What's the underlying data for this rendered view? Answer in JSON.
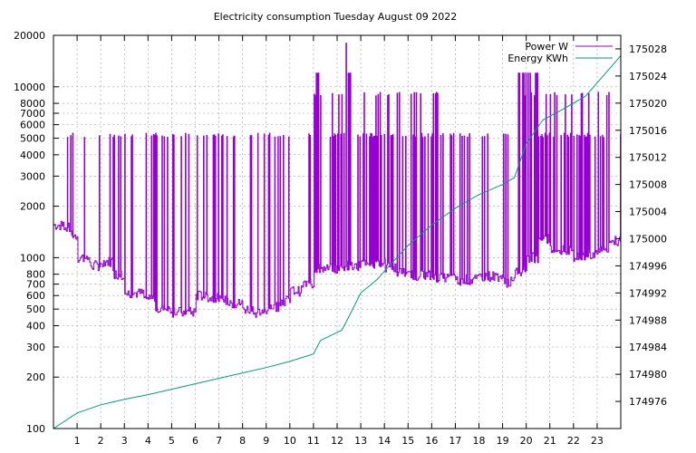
{
  "chart_data": {
    "type": "line",
    "title": "Electricity consumption Tuesday August 09 2022",
    "x_ticks": [
      "1",
      "2",
      "3",
      "4",
      "5",
      "6",
      "7",
      "8",
      "9",
      "10",
      "11",
      "12",
      "13",
      "14",
      "15",
      "16",
      "17",
      "18",
      "19",
      "20",
      "21",
      "22",
      "23"
    ],
    "x_range": [
      0,
      24
    ],
    "y1": {
      "scale": "log",
      "range": [
        100,
        20000
      ],
      "ticks": [
        100,
        200,
        300,
        400,
        500,
        600,
        700,
        800,
        1000,
        2000,
        3000,
        4000,
        5000,
        6000,
        7000,
        8000,
        10000,
        20000
      ],
      "tick_labels": [
        "100",
        "200",
        "300",
        "400",
        "500",
        "600",
        "700",
        "800",
        "1000",
        "2000",
        "3000",
        "4000",
        "5000",
        "6000",
        "7000",
        "8000",
        "10000",
        "20000"
      ]
    },
    "y2": {
      "scale": "linear",
      "range": [
        174972,
        175030
      ],
      "ticks": [
        174976,
        174980,
        174984,
        174988,
        174992,
        174996,
        175000,
        175004,
        175008,
        175012,
        175016,
        175020,
        175024,
        175028
      ],
      "tick_labels": [
        "174976",
        "174980",
        "174984",
        "174988",
        "174992",
        "174996",
        "175000",
        "175004",
        "175008",
        "175012",
        "175016",
        "175020",
        "175024",
        "175028"
      ]
    },
    "grid": true,
    "legend_position": "top-right",
    "series": [
      {
        "name": "Power W",
        "axis": "y1",
        "color": "#9400d3",
        "note": "baseline level per hour; spikes to ~5200 W several times per hour",
        "baseline_x": [
          0,
          0.5,
          0.7,
          1.0,
          1.5,
          2.0,
          2.5,
          3.0,
          3.5,
          3.8,
          4.3,
          5.0,
          6.0,
          6.5,
          7.0,
          7.5,
          8.0,
          8.5,
          9.0,
          9.5,
          10.0,
          10.5,
          11.0,
          12.0,
          13.0,
          14.0,
          14.5,
          15.0,
          16.0,
          17.0,
          18.0,
          19.0,
          19.5,
          20.0,
          20.5,
          21.0,
          22.0,
          22.5,
          23.0,
          23.5,
          24.0
        ],
        "baseline_y": [
          1550,
          1500,
          1350,
          1000,
          900,
          950,
          800,
          620,
          620,
          580,
          500,
          480,
          600,
          580,
          560,
          540,
          500,
          480,
          520,
          560,
          640,
          700,
          860,
          900,
          930,
          880,
          820,
          790,
          760,
          740,
          780,
          720,
          840,
          1000,
          1300,
          1100,
          1000,
          1050,
          1150,
          1250,
          1300
        ],
        "spike_value": 5200,
        "peak_values": [
          9200,
          18000,
          9200,
          12000
        ]
      },
      {
        "name": "Energy KWh",
        "axis": "y2",
        "color": "#009e73",
        "x": [
          0,
          1,
          2,
          3,
          4,
          5,
          6,
          7,
          8,
          9,
          10,
          11,
          11.3,
          12.2,
          12.5,
          13,
          13.7,
          14.2,
          15,
          16,
          17,
          18,
          19,
          19.5,
          20,
          20.7,
          21.5,
          22.5,
          23,
          23.5,
          24
        ],
        "y": [
          174972.0,
          174974.3,
          174975.5,
          174976.3,
          174977.0,
          174977.8,
          174978.6,
          174979.4,
          174980.2,
          174981.0,
          174981.9,
          174983.0,
          174985.0,
          174986.5,
          174988.5,
          174992.0,
          174994.0,
          174996.0,
          174999.0,
          175002.0,
          175004.5,
          175006.5,
          175008.0,
          175009.0,
          175014.0,
          175017.5,
          175019.0,
          175021.0,
          175023.0,
          175025.0,
          175027.0
        ]
      }
    ]
  }
}
